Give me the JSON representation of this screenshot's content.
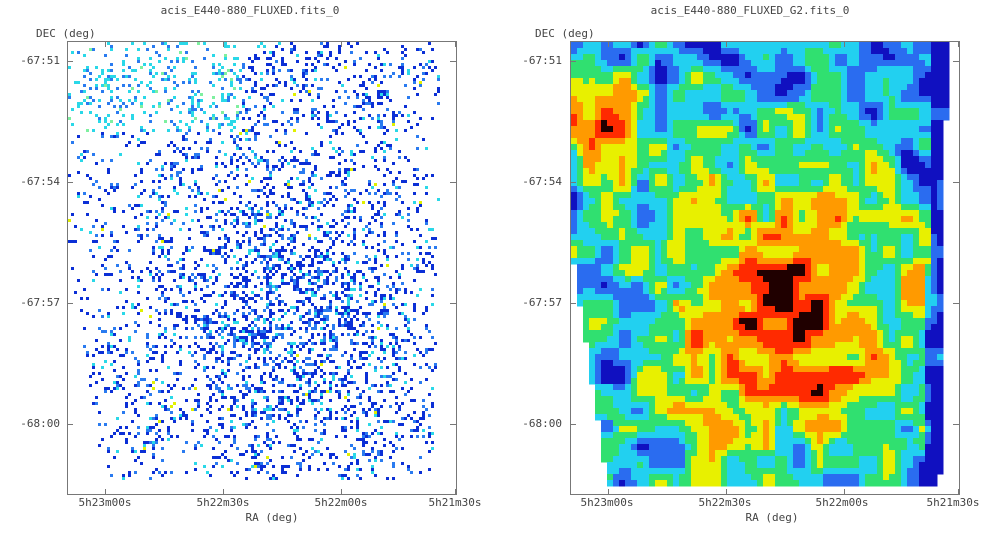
{
  "chart_data": [
    {
      "type": "heatmap",
      "title": "acis_E440-880_FLUXED.fits_0",
      "xlabel": "RA (deg)",
      "ylabel": "DEC (deg)",
      "x_ticks": [
        "5h23m00s",
        "5h22m30s",
        "5h22m00s",
        "5h21m30s"
      ],
      "y_ticks": [
        "-67:51",
        "-67:54",
        "-67:57",
        "-68:00"
      ],
      "colormap": [
        "#ffffff",
        "#0b2fd6",
        "#2a7bf0",
        "#2ad8e8",
        "#7ef0a0",
        "#e0f000"
      ],
      "style": "sparse-pixels"
    },
    {
      "type": "heatmap",
      "title": "acis_E440-880_FLUXED_G2.fits_0",
      "xlabel": "RA (deg)",
      "ylabel": "DEC (deg)",
      "x_ticks": [
        "5h23m00s",
        "5h22m30s",
        "5h22m00s",
        "5h21m30s"
      ],
      "y_ticks": [
        "-67:51",
        "-67:54",
        "-67:57",
        "-68:00"
      ],
      "colormap": [
        "#ffffff",
        "#1010c0",
        "#2a6cf0",
        "#22d0f0",
        "#30e070",
        "#e8f000",
        "#ff9a00",
        "#ff2a00",
        "#200000"
      ],
      "style": "smoothed"
    }
  ]
}
